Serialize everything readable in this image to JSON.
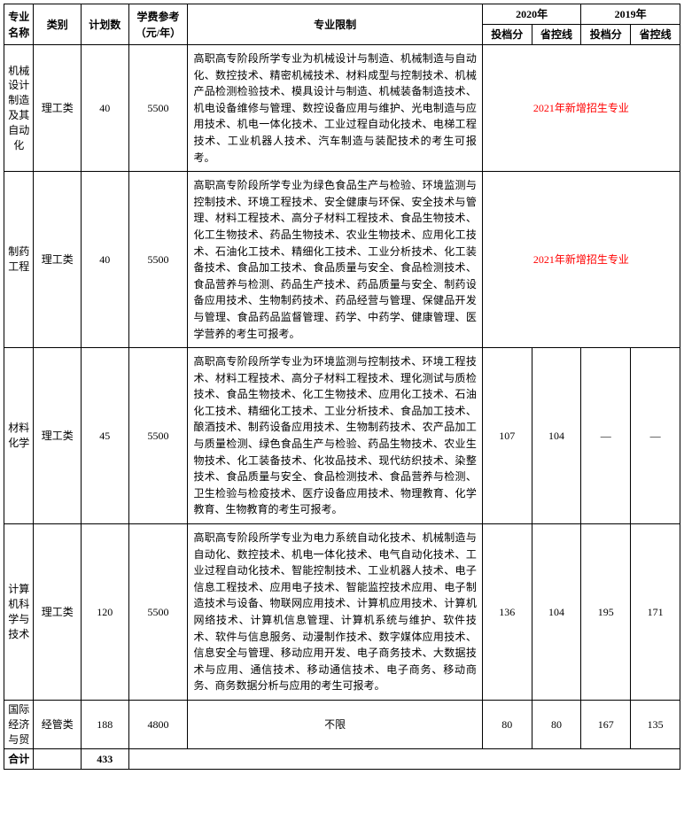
{
  "header": {
    "major": "专业名称",
    "category": "类别",
    "plan": "计划数",
    "fee": "学费参考（元/年）",
    "limit": "专业限制",
    "y2020": "2020年",
    "y2019": "2019年",
    "score": "投档分",
    "line": "省控线"
  },
  "new_major_note": "2021年新增招生专业",
  "rows": [
    {
      "major": "机械设计制造及其自动化",
      "category": "理工类",
      "plan": "40",
      "fee": "5500",
      "limit": "高职高专阶段所学专业为机械设计与制造、机械制造与自动化、数控技术、精密机械技术、材料成型与控制技术、机械产品检测检验技术、模具设计与制造、机械装备制造技术、机电设备维修与管理、数控设备应用与维护、光电制造与应用技术、机电一体化技术、工业过程自动化技术、电梯工程技术、工业机器人技术、汽车制造与装配技术的考生可报考。",
      "new": true
    },
    {
      "major": "制药工程",
      "category": "理工类",
      "plan": "40",
      "fee": "5500",
      "limit": "高职高专阶段所学专业为绿色食品生产与检验、环境监测与控制技术、环境工程技术、安全健康与环保、安全技术与管理、材料工程技术、高分子材料工程技术、食品生物技术、化工生物技术、药品生物技术、农业生物技术、应用化工技术、石油化工技术、精细化工技术、工业分析技术、化工装备技术、食品加工技术、食品质量与安全、食品检测技术、食品营养与检测、药品生产技术、药品质量与安全、制药设备应用技术、生物制药技术、药品经营与管理、保健品开发与管理、食品药品监督管理、药学、中药学、健康管理、医学营养的考生可报考。",
      "new": true
    },
    {
      "major": "材料化学",
      "category": "理工类",
      "plan": "45",
      "fee": "5500",
      "limit": "高职高专阶段所学专业为环境监测与控制技术、环境工程技术、材料工程技术、高分子材料工程技术、理化测试与质检技术、食品生物技术、化工生物技术、应用化工技术、石油化工技术、精细化工技术、工业分析技术、食品加工技术、酿酒技术、制药设备应用技术、生物制药技术、农产品加工与质量检测、绿色食品生产与检验、药品生物技术、农业生物技术、化工装备技术、化妆品技术、现代纺织技术、染整技术、食品质量与安全、食品检测技术、食品营养与检测、卫生检验与检疫技术、医疗设备应用技术、物理教育、化学教育、生物教育的考生可报考。",
      "new": false,
      "s2020": "107",
      "l2020": "104",
      "s2019": "—",
      "l2019": "—"
    },
    {
      "major": "计算机科学与技术",
      "category": "理工类",
      "plan": "120",
      "fee": "5500",
      "limit": "高职高专阶段所学专业为电力系统自动化技术、机械制造与自动化、数控技术、机电一体化技术、电气自动化技术、工业过程自动化技术、智能控制技术、工业机器人技术、电子信息工程技术、应用电子技术、智能监控技术应用、电子制造技术与设备、物联网应用技术、计算机应用技术、计算机网络技术、计算机信息管理、计算机系统与维护、软件技术、软件与信息服务、动漫制作技术、数字媒体应用技术、信息安全与管理、移动应用开发、电子商务技术、大数据技术与应用、通信技术、移动通信技术、电子商务、移动商务、商务数据分析与应用的考生可报考。",
      "new": false,
      "s2020": "136",
      "l2020": "104",
      "s2019": "195",
      "l2019": "171"
    },
    {
      "major": "国际经济与贸",
      "category": "经管类",
      "plan": "188",
      "fee": "4800",
      "limit": "不限",
      "limit_center": true,
      "new": false,
      "s2020": "80",
      "l2020": "80",
      "s2019": "167",
      "l2019": "135"
    }
  ],
  "total": {
    "label": "合计",
    "plan": "433"
  }
}
